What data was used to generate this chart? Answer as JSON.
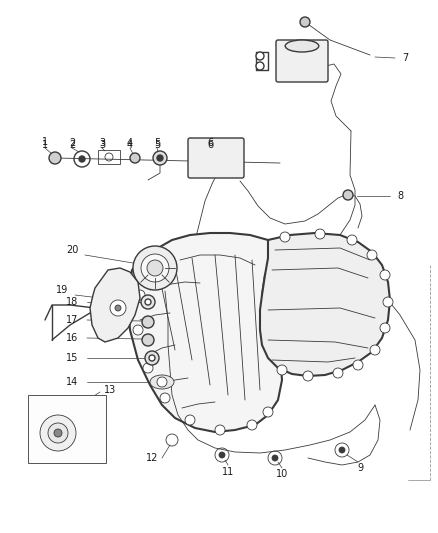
{
  "bg_color": "#ffffff",
  "line_color": "#3a3a3a",
  "label_color": "#1a1a1a",
  "label_fontsize": 6.5,
  "figsize": [
    4.38,
    5.33
  ],
  "dpi": 100
}
